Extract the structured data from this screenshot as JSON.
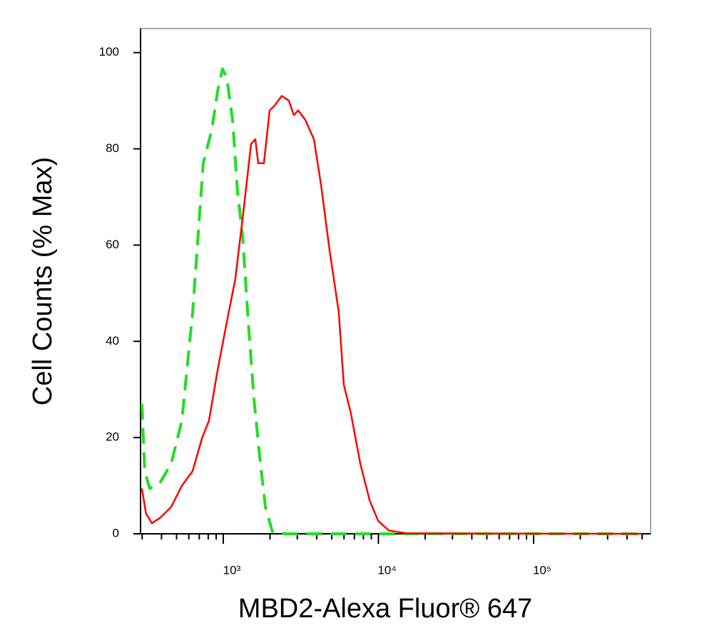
{
  "chart_data": {
    "type": "line",
    "x_label": "MBD2-Alexa Fluor® 647",
    "y_label": "Cell Counts (% Max)",
    "xscale": "log",
    "xlim": [
      293,
      568000
    ],
    "ylim": [
      0,
      105
    ],
    "yticks": [
      0,
      20,
      40,
      60,
      80,
      100
    ],
    "xticks": [
      {
        "value": 1000,
        "label": "10³"
      },
      {
        "value": 10000,
        "label": "10⁴"
      },
      {
        "value": 100000,
        "label": "10⁵"
      }
    ],
    "xminorticks": [
      300,
      400,
      500,
      600,
      700,
      800,
      900,
      2000,
      3000,
      4000,
      5000,
      6000,
      7000,
      8000,
      9000,
      20000,
      30000,
      40000,
      50000,
      60000,
      70000,
      80000,
      90000,
      200000,
      300000,
      400000,
      500000
    ],
    "series": [
      {
        "color": "#ff0000",
        "dashed": false,
        "x": [
          299,
          318,
          347,
          394,
          462,
          541,
          634,
          728,
          809,
          919,
          1054,
          1197,
          1360,
          1511,
          1610,
          1680,
          1828,
          1991,
          2143,
          2383,
          2648,
          2852,
          3040,
          3380,
          3837,
          4266,
          4842,
          5555,
          5984,
          6652,
          7638,
          8770,
          9950,
          11670,
          15200,
          500000
        ],
        "values": [
          9.4,
          4.2,
          2.2,
          3.4,
          5.6,
          10,
          13,
          19.8,
          23.5,
          34,
          44,
          53,
          68,
          81,
          82,
          77,
          77,
          88,
          89,
          91,
          90,
          87,
          88,
          86,
          82,
          72.5,
          59,
          46,
          31,
          25,
          14.6,
          7,
          2.7,
          0.7,
          0.1,
          0
        ]
      },
      {
        "color": "#22dd22",
        "dashed": true,
        "x": [
          299,
          312,
          336,
          394,
          462,
          541,
          634,
          743,
          844,
          919,
          989,
          1054,
          1148,
          1236,
          1331,
          1449,
          1577,
          1716,
          1868,
          2076,
          2512,
          500000
        ],
        "values": [
          27,
          13,
          9.4,
          10.8,
          14.6,
          23.5,
          45.8,
          77,
          84,
          92,
          96.6,
          94.8,
          86,
          71,
          62,
          44,
          28,
          16,
          5.6,
          0.4,
          0,
          0
        ]
      }
    ]
  }
}
